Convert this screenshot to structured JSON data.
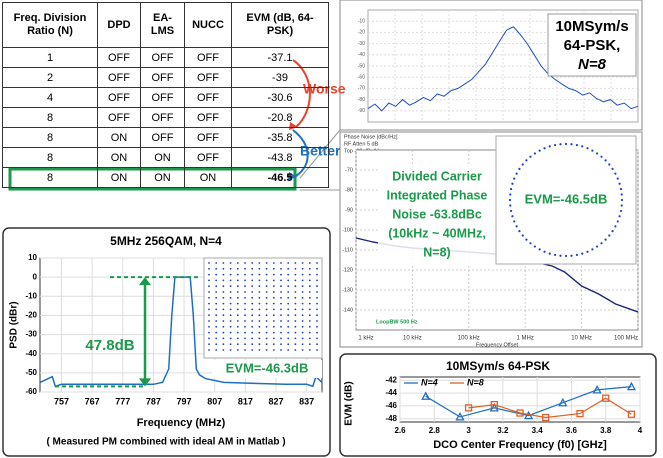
{
  "table": {
    "headers": [
      "Freq. Division Ratio (N)",
      "DPD",
      "EA-LMS",
      "NUCC",
      "EVM (dB, 64-PSK)"
    ],
    "rows": [
      [
        "1",
        "OFF",
        "OFF",
        "OFF",
        "-37.1"
      ],
      [
        "2",
        "OFF",
        "OFF",
        "OFF",
        "-39"
      ],
      [
        "4",
        "OFF",
        "OFF",
        "OFF",
        "-30.6"
      ],
      [
        "8",
        "OFF",
        "OFF",
        "OFF",
        "-20.8"
      ],
      [
        "8",
        "ON",
        "OFF",
        "OFF",
        "-35.8"
      ],
      [
        "8",
        "ON",
        "ON",
        "OFF",
        "-43.8"
      ],
      [
        "8",
        "ON",
        "ON",
        "ON",
        "-46.5"
      ]
    ],
    "worse": "Worse",
    "better": "Better"
  },
  "chart_data": [
    {
      "type": "line",
      "annotation_lines": [
        "10MSym/s",
        "64-PSK,",
        "N=8"
      ],
      "values": [
        -88,
        -84,
        -90,
        -83,
        -86,
        -80,
        -85,
        -82,
        -78,
        -81,
        -75,
        -77,
        -72,
        -70,
        -66,
        -62,
        -55,
        -48,
        -38,
        -28,
        -18,
        -15,
        -22,
        -30,
        -40,
        -50,
        -57,
        -62,
        -66,
        -70,
        -72,
        -76,
        -74,
        -79,
        -82,
        -80,
        -85,
        -83,
        -88,
        -86
      ],
      "color": "#1f4fbf",
      "ylim": [
        -100,
        0
      ],
      "yticks": [
        -10,
        -20,
        -30,
        -40,
        -50,
        -60,
        -70,
        -80,
        -90
      ]
    },
    {
      "type": "line",
      "header_lines": [
        "Phase Noise [dBc/Hz]",
        "RF Atten 5 dB",
        "Top -60 dBc/Hz"
      ],
      "xlabel": "Frequency Offset",
      "xscale": "log",
      "x": [
        1000,
        2000,
        5000,
        10000,
        30000,
        100000,
        300000,
        1000000,
        3000000,
        5000000,
        10000000,
        20000000,
        40000000,
        100000000
      ],
      "values": [
        -104,
        -106,
        -108,
        -109,
        -110,
        -111,
        -112,
        -115,
        -118,
        -121,
        -128,
        -132,
        -137,
        -141
      ],
      "color": "#1a237e",
      "xlim": [
        1000,
        100000000
      ],
      "xticks": [
        {
          "value": 1000,
          "label": "1 kHz"
        },
        {
          "value": 10000,
          "label": "10 kHz"
        },
        {
          "value": 100000,
          "label": "100 kHz"
        },
        {
          "value": 1000000,
          "label": "1 MHz"
        },
        {
          "value": 10000000,
          "label": "10 MHz"
        },
        {
          "value": 100000000,
          "label": "100 MHz"
        }
      ],
      "ylim": [
        -150,
        -60
      ],
      "yticks": [
        -70,
        -80,
        -90,
        -100,
        -110,
        -120,
        -130,
        -140
      ],
      "annotation_lines": [
        "Divided Carrier",
        "Integrated Phase",
        "Noise -63.8dBc",
        "(10kHz ~ 40MHz,",
        "N=8)"
      ],
      "loop_label": "LoopBW 500 Hz",
      "evm_label": "EVM=-46.5dB",
      "grid": true
    },
    {
      "type": "line",
      "title": "5MHz 256QAM, N=4",
      "xlabel": "Frequency (MHz)",
      "ylabel": "PSD (dBr)",
      "caption": "( Measured PM combined with ideal AM in Matlab )",
      "x": [
        750,
        754,
        755,
        757,
        767,
        777,
        787,
        790,
        792,
        793,
        794,
        795,
        799,
        800,
        801,
        802,
        804,
        810,
        820,
        830,
        837,
        839,
        840,
        842
      ],
      "values": [
        -55,
        -52,
        -57,
        -56,
        -56,
        -56,
        -56,
        -55,
        -48,
        -20,
        0,
        0,
        0,
        -20,
        -48,
        -51,
        -53,
        -55,
        -55.5,
        -56,
        -56,
        -57,
        -52,
        -55
      ],
      "color": "#1f6fbf",
      "xlim": [
        750,
        842
      ],
      "xticks": [
        757,
        767,
        777,
        787,
        797,
        807,
        817,
        827,
        837
      ],
      "ylim": [
        -60,
        10
      ],
      "yticks": [
        -60,
        -50,
        -40,
        -30,
        -20,
        -10,
        0,
        10
      ],
      "gap_label": "47.8dB",
      "evm_label": "EVM=-46.3dB",
      "grid": true
    },
    {
      "type": "line",
      "title": "10MSym/s 64-PSK",
      "xlabel": "DCO Center Frequency (f0) [GHz]",
      "ylabel": "EVM (dB)",
      "xlim": [
        2.6,
        4
      ],
      "xticks": [
        2.6,
        2.8,
        3,
        3.2,
        3.4,
        3.6,
        3.8,
        4
      ],
      "ylim": [
        -48.5,
        -41.5
      ],
      "yticks": [
        -42,
        -44,
        -46,
        -48
      ],
      "legend": "top-left",
      "series": [
        {
          "name": "N=4",
          "color": "#1f6fbf",
          "marker": "triangle",
          "x": [
            2.75,
            2.95,
            3.15,
            3.35,
            3.55,
            3.75,
            3.95
          ],
          "values": [
            -44.5,
            -47.7,
            -46.3,
            -47.5,
            -45.5,
            -43.5,
            -43
          ]
        },
        {
          "name": "N=8",
          "color": "#d9622b",
          "marker": "square",
          "x": [
            3.0,
            3.15,
            3.3,
            3.45,
            3.65,
            3.8,
            3.95
          ],
          "values": [
            -46.3,
            -45.8,
            -47.1,
            -47.8,
            -47.2,
            -44.8,
            -47.3
          ]
        }
      ],
      "grid": true
    }
  ]
}
